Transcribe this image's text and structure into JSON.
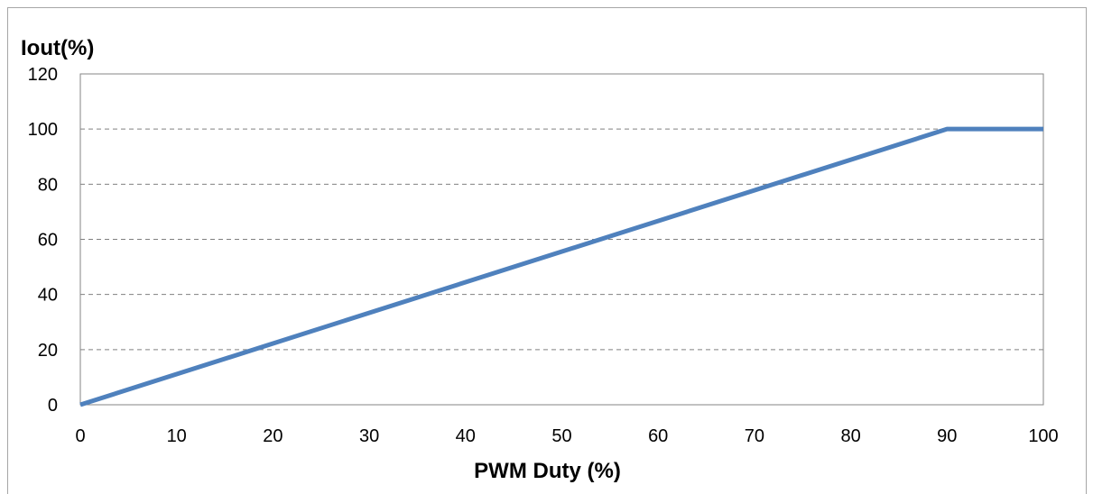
{
  "chart_data": {
    "type": "line",
    "title": "",
    "xlabel": "PWM Duty (%)",
    "ylabel": "Iout(%)",
    "xlim": [
      0,
      100
    ],
    "ylim": [
      0,
      120
    ],
    "x_ticks": [
      0,
      10,
      20,
      30,
      40,
      50,
      60,
      70,
      80,
      90,
      100
    ],
    "y_ticks": [
      0,
      20,
      40,
      60,
      80,
      100,
      120
    ],
    "grid": "horizontal-dashed",
    "legend": "none",
    "series": [
      {
        "x": [
          0,
          90,
          100
        ],
        "y": [
          0,
          100,
          100
        ],
        "color": "#4f81bd"
      }
    ]
  },
  "colors": {
    "grid": "#808080",
    "axis": "#868686"
  }
}
